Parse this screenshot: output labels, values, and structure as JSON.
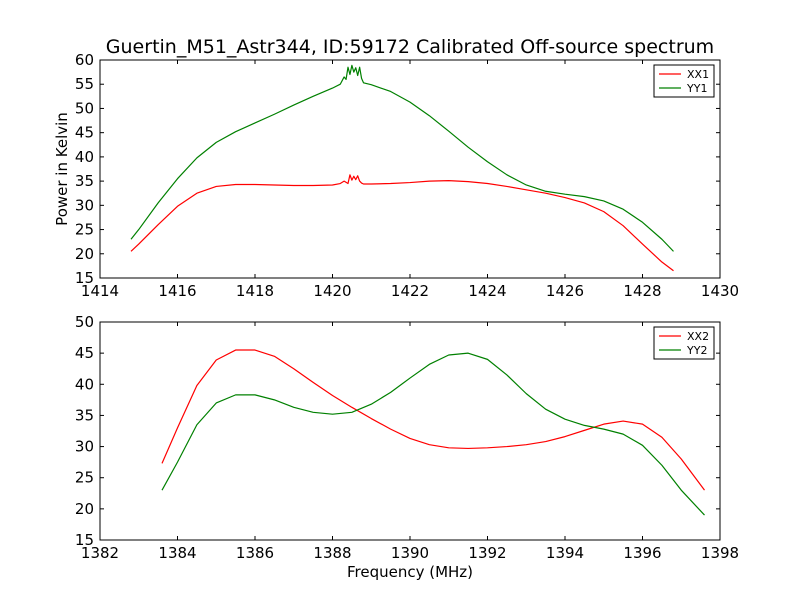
{
  "figure": {
    "title": "Guertin_M51_Astr344, ID:59172 Calibrated Off-source spectrum"
  },
  "chart_data": [
    {
      "type": "line",
      "title": "Guertin_M51_Astr344, ID:59172 Calibrated Off-source spectrum",
      "xlabel": "",
      "ylabel": "Power in Kelvin",
      "xlim": [
        1414,
        1430
      ],
      "ylim": [
        15,
        60
      ],
      "xticks": [
        1414,
        1416,
        1418,
        1420,
        1422,
        1424,
        1426,
        1428,
        1430
      ],
      "yticks": [
        15,
        20,
        25,
        30,
        35,
        40,
        45,
        50,
        55,
        60
      ],
      "grid": false,
      "legend_position": "top-right",
      "series": [
        {
          "name": "XX1",
          "color": "#ff0000",
          "x": [
            1414.8,
            1415.0,
            1415.5,
            1416.0,
            1416.5,
            1417.0,
            1417.5,
            1418.0,
            1418.5,
            1419.0,
            1419.5,
            1420.0,
            1420.2,
            1420.3,
            1420.4,
            1420.45,
            1420.5,
            1420.55,
            1420.6,
            1420.65,
            1420.7,
            1420.75,
            1420.8,
            1421.0,
            1421.5,
            1422.0,
            1422.5,
            1423.0,
            1423.5,
            1424.0,
            1424.5,
            1425.0,
            1425.5,
            1426.0,
            1426.5,
            1427.0,
            1427.5,
            1428.0,
            1428.5,
            1428.8
          ],
          "y": [
            20.5,
            22.0,
            26.0,
            29.8,
            32.5,
            33.9,
            34.3,
            34.3,
            34.2,
            34.1,
            34.1,
            34.2,
            34.5,
            35.0,
            34.5,
            36.3,
            35.2,
            36.0,
            35.3,
            36.1,
            35.0,
            34.6,
            34.4,
            34.4,
            34.5,
            34.7,
            35.0,
            35.1,
            34.9,
            34.5,
            33.9,
            33.2,
            32.5,
            31.6,
            30.5,
            28.7,
            25.8,
            22.0,
            18.3,
            16.5
          ]
        },
        {
          "name": "YY1",
          "color": "#008000",
          "x": [
            1414.8,
            1415.0,
            1415.5,
            1416.0,
            1416.5,
            1417.0,
            1417.5,
            1418.0,
            1418.5,
            1419.0,
            1419.5,
            1420.0,
            1420.2,
            1420.3,
            1420.35,
            1420.4,
            1420.45,
            1420.5,
            1420.55,
            1420.6,
            1420.65,
            1420.7,
            1420.75,
            1420.8,
            1421.0,
            1421.5,
            1422.0,
            1422.5,
            1423.0,
            1423.5,
            1424.0,
            1424.5,
            1425.0,
            1425.5,
            1426.0,
            1426.5,
            1427.0,
            1427.5,
            1428.0,
            1428.5,
            1428.8
          ],
          "y": [
            23.0,
            25.0,
            30.5,
            35.5,
            39.8,
            43.0,
            45.2,
            47.0,
            48.8,
            50.7,
            52.5,
            54.2,
            55.0,
            56.5,
            56.0,
            58.5,
            57.0,
            58.9,
            57.5,
            58.4,
            56.8,
            58.5,
            56.2,
            55.3,
            54.9,
            53.5,
            51.3,
            48.5,
            45.3,
            42.0,
            39.0,
            36.3,
            34.2,
            32.9,
            32.3,
            31.8,
            30.9,
            29.2,
            26.5,
            23.0,
            20.5
          ]
        }
      ]
    },
    {
      "type": "line",
      "title": "",
      "xlabel": "Frequency (MHz)",
      "ylabel": "",
      "xlim": [
        1382,
        1398
      ],
      "ylim": [
        15,
        50
      ],
      "xticks": [
        1382,
        1384,
        1386,
        1388,
        1390,
        1392,
        1394,
        1396,
        1398
      ],
      "yticks": [
        15,
        20,
        25,
        30,
        35,
        40,
        45,
        50
      ],
      "grid": false,
      "legend_position": "top-right",
      "series": [
        {
          "name": "XX2",
          "color": "#ff0000",
          "x": [
            1383.6,
            1384.0,
            1384.5,
            1385.0,
            1385.5,
            1386.0,
            1386.5,
            1387.0,
            1387.5,
            1388.0,
            1388.5,
            1389.0,
            1389.5,
            1390.0,
            1390.5,
            1391.0,
            1391.5,
            1392.0,
            1392.5,
            1393.0,
            1393.5,
            1394.0,
            1394.5,
            1395.0,
            1395.5,
            1396.0,
            1396.5,
            1397.0,
            1397.6
          ],
          "y": [
            27.3,
            33.0,
            39.8,
            43.9,
            45.5,
            45.5,
            44.5,
            42.5,
            40.3,
            38.2,
            36.3,
            34.5,
            32.8,
            31.3,
            30.3,
            29.8,
            29.7,
            29.8,
            30.0,
            30.3,
            30.8,
            31.6,
            32.6,
            33.6,
            34.1,
            33.6,
            31.5,
            28.0,
            23.0
          ]
        },
        {
          "name": "YY2",
          "color": "#008000",
          "x": [
            1383.6,
            1384.0,
            1384.5,
            1385.0,
            1385.5,
            1386.0,
            1386.5,
            1387.0,
            1387.5,
            1388.0,
            1388.5,
            1389.0,
            1389.5,
            1390.0,
            1390.5,
            1391.0,
            1391.5,
            1392.0,
            1392.5,
            1393.0,
            1393.5,
            1394.0,
            1394.5,
            1395.0,
            1395.5,
            1396.0,
            1396.5,
            1397.0,
            1397.6
          ],
          "y": [
            23.0,
            27.5,
            33.5,
            37.0,
            38.3,
            38.3,
            37.5,
            36.3,
            35.5,
            35.2,
            35.5,
            36.8,
            38.7,
            41.0,
            43.2,
            44.7,
            45.0,
            44.0,
            41.5,
            38.5,
            36.0,
            34.4,
            33.4,
            32.8,
            32.0,
            30.2,
            27.0,
            23.0,
            19.0
          ]
        }
      ]
    }
  ]
}
